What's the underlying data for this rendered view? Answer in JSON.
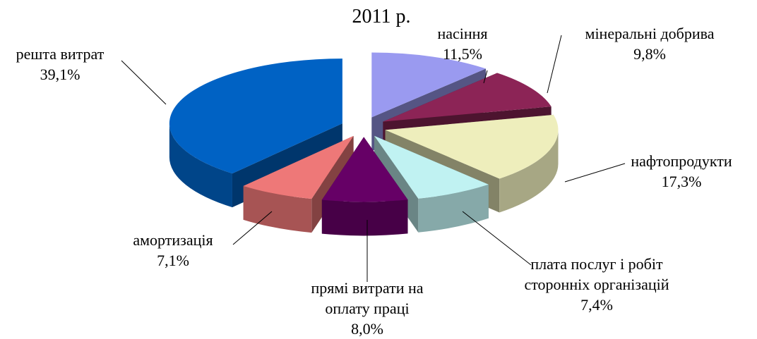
{
  "chart_data": {
    "type": "pie3d",
    "title": "2011 р.",
    "categories": [
      "насіння",
      "мінеральні добрива",
      "нафтопродукти",
      "плата послуг і робіт сторонніх організацій",
      "прямі витрати на оплату праці",
      "амортизація",
      "решта витрат"
    ],
    "values": [
      11.5,
      9.8,
      17.3,
      7.4,
      8.0,
      7.1,
      39.1
    ],
    "value_labels": [
      "11,5%",
      "9,8%",
      "17,3%",
      "7,4%",
      "8,0%",
      "7,1%",
      "39,1%"
    ],
    "colors": [
      "#9a9af0",
      "#8c2456",
      "#eeeebc",
      "#c0f2f2",
      "#660066",
      "#ee7878",
      "#0062c4"
    ]
  }
}
